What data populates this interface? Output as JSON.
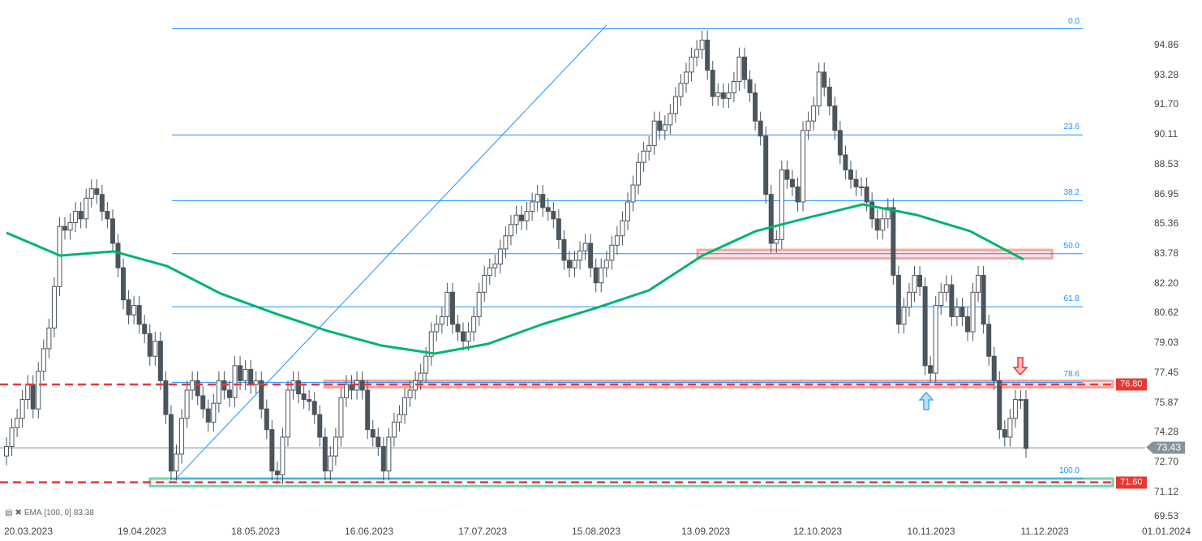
{
  "chart_data": {
    "type": "candlestick",
    "y_ticks": [
      "94.86",
      "93.28",
      "91.70",
      "90.11",
      "88.53",
      "86.95",
      "85.36",
      "83.78",
      "82.20",
      "80.62",
      "79.03",
      "77.45",
      "75.87",
      "74.28",
      "72.70",
      "71.12",
      "69.53"
    ],
    "x_ticks": [
      "20.03.2023",
      "19.04.2023",
      "18.05.2023",
      "16.06.2023",
      "17.07.2023",
      "15.08.2023",
      "13.09.2023",
      "12.10.2023",
      "10.11.2023",
      "11.12.2023",
      "01.01.2024"
    ],
    "ylim": [
      69.3,
      96.2
    ],
    "close": [
      73.5,
      74.5,
      75.0,
      76.0,
      76.8,
      75.5,
      77.5,
      78.7,
      79.8,
      82.0,
      85.2,
      85.0,
      85.4,
      86.0,
      85.6,
      86.7,
      87.2,
      86.9,
      86.0,
      85.6,
      84.3,
      83.0,
      81.3,
      80.5,
      81.0,
      80.0,
      79.5,
      78.3,
      79.1,
      77.0,
      75.2,
      72.2,
      73.1,
      75.0,
      76.5,
      77.0,
      76.2,
      75.5,
      74.8,
      75.8,
      77.0,
      76.5,
      76.1,
      77.8,
      77.0,
      77.6,
      76.8,
      77.0,
      75.5,
      74.4,
      72.2,
      72.0,
      74.0,
      76.5,
      77.0,
      76.3,
      76.0,
      75.9,
      75.2,
      74.0,
      72.2,
      73.0,
      74.0,
      76.1,
      76.8,
      76.5,
      77.0,
      76.5,
      74.4,
      74.0,
      73.5,
      72.2,
      74.0,
      74.8,
      75.2,
      76.1,
      76.5,
      77.0,
      77.4,
      78.3,
      79.6,
      80.0,
      80.4,
      81.7,
      80.0,
      79.6,
      79.1,
      79.6,
      80.4,
      81.7,
      82.6,
      83.0,
      83.2,
      84.0,
      84.7,
      85.3,
      85.8,
      85.5,
      86.0,
      86.5,
      86.9,
      86.2,
      86.0,
      85.6,
      84.5,
      83.4,
      83.0,
      83.4,
      83.9,
      84.3,
      83.0,
      82.2,
      83.0,
      83.4,
      84.2,
      84.7,
      85.5,
      86.5,
      87.4,
      88.6,
      89.2,
      89.5,
      90.8,
      90.3,
      90.6,
      91.2,
      92.1,
      92.8,
      93.4,
      94.2,
      94.6,
      95.1,
      93.5,
      92.1,
      92.3,
      92.0,
      92.3,
      92.9,
      94.2,
      93.0,
      92.3,
      90.8,
      90.0,
      86.9,
      84.3,
      84.5,
      88.2,
      87.7,
      87.3,
      86.5,
      90.3,
      90.8,
      91.6,
      93.4,
      92.6,
      91.6,
      90.3,
      89.0,
      88.2,
      87.7,
      87.3,
      87.3,
      86.5,
      85.6,
      85.0,
      85.6,
      86.2,
      82.6,
      80.0,
      80.9,
      81.7,
      82.6,
      82.0,
      77.8,
      77.4,
      81.0,
      81.7,
      82.1,
      80.4,
      80.9,
      80.4,
      79.6,
      81.7,
      82.6,
      80.0,
      78.3,
      77.0,
      74.4,
      74.0,
      75.0,
      76.0,
      76.0,
      73.4
    ],
    "ema": {
      "label": "EMA",
      "params": "[100,  0]",
      "value": "83.38",
      "color": "#00b46e",
      "values": [
        84.86,
        83.65,
        83.87,
        83.09,
        81.63,
        80.59,
        79.64,
        78.87,
        78.44,
        78.96,
        79.99,
        80.85,
        81.8,
        83.65,
        84.95,
        85.68,
        86.37,
        85.81,
        84.95,
        83.44
      ]
    },
    "fibonacci": {
      "high": 95.7,
      "low": 71.8,
      "color": "#1e90ff",
      "levels": [
        {
          "ratio": 0,
          "label": "0.0"
        },
        {
          "ratio": 0.236,
          "label": "23.6"
        },
        {
          "ratio": 0.382,
          "label": "38.2"
        },
        {
          "ratio": 0.5,
          "label": "50.0"
        },
        {
          "ratio": 0.618,
          "label": "61.8"
        },
        {
          "ratio": 0.786,
          "label": "78.6"
        },
        {
          "ratio": 1,
          "label": "100.0"
        }
      ]
    },
    "trendline": {
      "from": 71.7,
      "to": 95.9,
      "color": "#1e90ff"
    },
    "horizontal_levels": [
      {
        "value": 76.8,
        "label": "76.80",
        "color": "#e53935",
        "style": "dashed"
      },
      {
        "value": 71.6,
        "label": "71.60",
        "color": "#e53935",
        "style": "dashed"
      }
    ],
    "zones": [
      {
        "top": 83.95,
        "bottom": 83.5,
        "color": "#f4a6a6"
      },
      {
        "top": 77.0,
        "bottom": 76.65,
        "color": "#f4a6a6"
      },
      {
        "top": 71.8,
        "bottom": 71.4,
        "color": "#6fd6b0"
      }
    ],
    "last_price": {
      "value": 73.43,
      "label": "73.43",
      "color": "#8a9296"
    },
    "arrows": [
      {
        "direction": "up",
        "color": "#42a5f5"
      },
      {
        "direction": "down",
        "color": "#e53935"
      }
    ],
    "candle_colors": {
      "up": "#ffffff",
      "down": "#4a555d",
      "outline": "#4a555d"
    }
  }
}
